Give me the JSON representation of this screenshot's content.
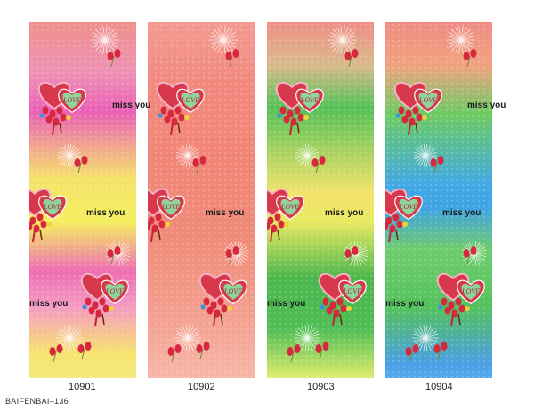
{
  "swatches": [
    {
      "code": "10901",
      "text": "miss you"
    },
    {
      "code": "10902",
      "text": "miss you"
    },
    {
      "code": "10903",
      "text": "miss you"
    },
    {
      "code": "10904",
      "text": "miss you"
    }
  ],
  "heart_text": "LOVE",
  "footer_label": "BAIFENBAI–136",
  "colors": {
    "red_top": "#ef8f8a",
    "pink": "#ea5fb6",
    "yellow": "#f4ef5d",
    "coral": "#f18677",
    "green": "#4ab64c",
    "blue": "#41a8e6",
    "heart_red": "#d8384b",
    "heart_green": "#8fd49a",
    "tulip_red": "#d6283e"
  }
}
